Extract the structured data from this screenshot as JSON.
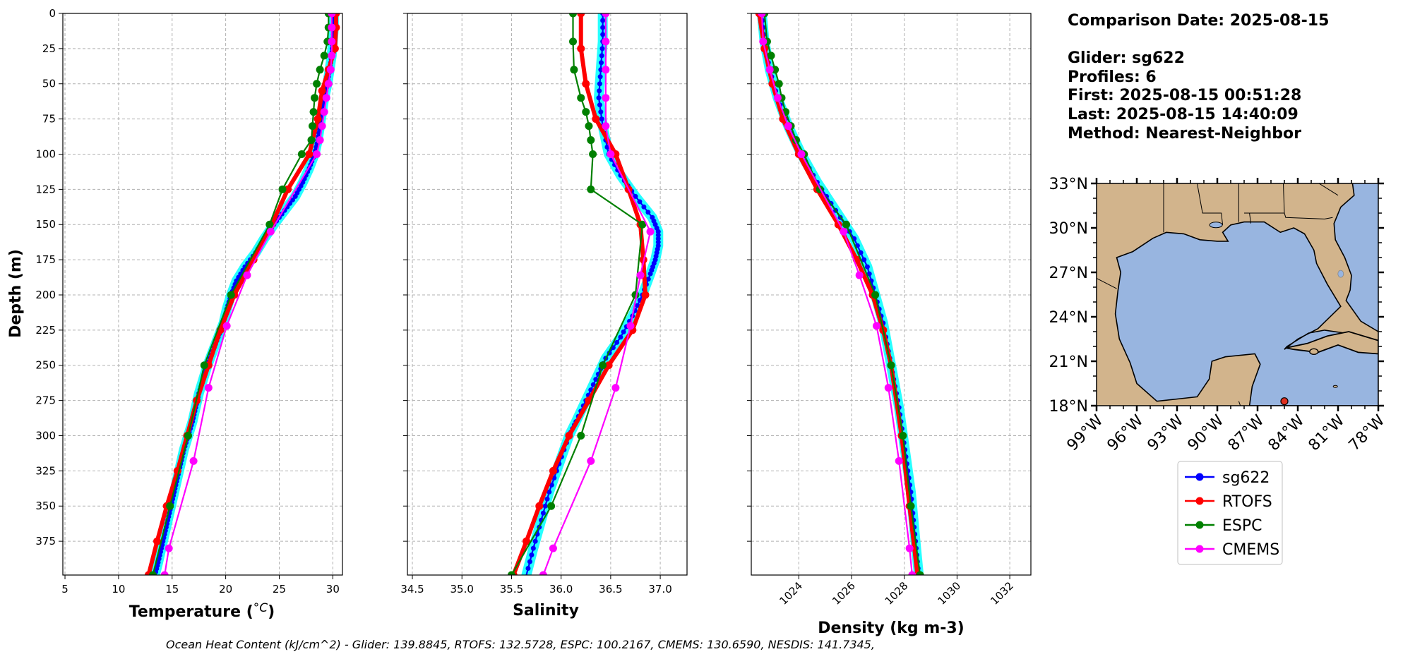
{
  "chart_data": [
    {
      "type": "line",
      "xlabel": "Temperature (",
      "xlabel_unit": "°C",
      "ylabel": "Depth (m)",
      "xlim": [
        4.8,
        30.9
      ],
      "ylim": [
        399,
        0
      ],
      "xticks": [
        "5",
        "10",
        "15",
        "20",
        "25",
        "30"
      ],
      "yticks": [
        "0",
        "25",
        "50",
        "75",
        "100",
        "125",
        "150",
        "175",
        "200",
        "225",
        "250",
        "275",
        "300",
        "325",
        "350",
        "375"
      ],
      "grid": true,
      "series": [
        {
          "name": "sg622",
          "depth": [
            0,
            10,
            20,
            30,
            40,
            50,
            60,
            70,
            80,
            90,
            100,
            110,
            120,
            130,
            140,
            150,
            160,
            170,
            180,
            190,
            200,
            210,
            220,
            230,
            240,
            250,
            260,
            270,
            280,
            290,
            300,
            310,
            320,
            330,
            340,
            350,
            360,
            370,
            380,
            390,
            399
          ],
          "values": [
            30.1,
            30.1,
            30.0,
            29.9,
            29.7,
            29.5,
            29.2,
            29.0,
            28.8,
            28.6,
            28.3,
            27.8,
            27.2,
            26.5,
            25.5,
            24.5,
            23.6,
            22.8,
            21.8,
            21.0,
            20.5,
            20.1,
            19.8,
            19.3,
            18.8,
            18.3,
            17.9,
            17.5,
            17.2,
            16.9,
            16.5,
            16.1,
            15.8,
            15.5,
            15.2,
            14.9,
            14.6,
            14.3,
            14.0,
            13.7,
            13.4
          ]
        },
        {
          "name": "RTOFS",
          "depth": [
            0,
            10,
            25,
            40,
            55,
            75,
            100,
            125,
            150,
            175,
            200,
            225,
            250,
            275,
            300,
            325,
            350,
            375,
            399
          ],
          "values": [
            30.3,
            30.3,
            30.2,
            29.6,
            29.0,
            28.6,
            27.8,
            25.8,
            24.3,
            22.6,
            20.8,
            19.5,
            18.4,
            17.3,
            16.4,
            15.5,
            14.5,
            13.6,
            12.8
          ]
        },
        {
          "name": "ESPC",
          "depth": [
            0,
            10,
            20,
            30,
            40,
            50,
            60,
            70,
            80,
            90,
            100,
            125,
            150,
            200,
            250,
            300,
            350,
            399
          ],
          "values": [
            29.6,
            29.6,
            29.5,
            29.2,
            28.8,
            28.5,
            28.3,
            28.2,
            28.1,
            28.0,
            27.1,
            25.3,
            24.1,
            20.5,
            18.0,
            16.5,
            14.8,
            13.2
          ]
        },
        {
          "name": "CMEMS",
          "depth": [
            0,
            10,
            20,
            30,
            40,
            50,
            60,
            70,
            80,
            90,
            100,
            155,
            186,
            222,
            266,
            318,
            380,
            399
          ],
          "values": [
            29.9,
            29.9,
            29.9,
            29.9,
            29.8,
            29.6,
            29.4,
            29.2,
            29.0,
            28.8,
            28.5,
            24.2,
            22.0,
            20.1,
            18.4,
            17.0,
            14.7,
            14.3
          ]
        }
      ]
    },
    {
      "type": "line",
      "xlabel": "Salinity",
      "xlim": [
        34.45,
        37.27
      ],
      "ylim": [
        399,
        0
      ],
      "xticks": [
        "34.5",
        "35.0",
        "35.5",
        "36.0",
        "36.5",
        "37.0"
      ],
      "grid": true,
      "series": [
        {
          "name": "sg622",
          "depth": [
            0,
            20,
            40,
            60,
            80,
            100,
            115,
            130,
            145,
            155,
            165,
            175,
            185,
            200,
            215,
            230,
            245,
            260,
            275,
            290,
            300,
            320,
            340,
            360,
            380,
            399
          ],
          "values": [
            36.42,
            36.42,
            36.4,
            36.38,
            36.42,
            36.48,
            36.6,
            36.75,
            36.92,
            36.98,
            36.98,
            36.95,
            36.9,
            36.82,
            36.72,
            36.6,
            36.45,
            36.35,
            36.25,
            36.15,
            36.08,
            35.98,
            35.88,
            35.8,
            35.72,
            35.65
          ]
        },
        {
          "name": "RTOFS",
          "depth": [
            0,
            25,
            50,
            75,
            100,
            125,
            150,
            175,
            200,
            225,
            250,
            275,
            300,
            325,
            350,
            375,
            399
          ],
          "values": [
            36.2,
            36.2,
            36.25,
            36.35,
            36.55,
            36.68,
            36.8,
            36.83,
            36.85,
            36.72,
            36.48,
            36.28,
            36.08,
            35.92,
            35.78,
            35.65,
            35.52
          ]
        },
        {
          "name": "ESPC",
          "depth": [
            0,
            20,
            40,
            60,
            70,
            80,
            90,
            100,
            125,
            150,
            200,
            250,
            300,
            350,
            399
          ],
          "values": [
            36.12,
            36.12,
            36.13,
            36.2,
            36.25,
            36.28,
            36.3,
            36.32,
            36.3,
            36.82,
            36.75,
            36.42,
            36.2,
            35.9,
            35.5
          ]
        },
        {
          "name": "CMEMS",
          "depth": [
            0,
            20,
            40,
            60,
            80,
            100,
            155,
            186,
            222,
            266,
            318,
            380,
            399
          ],
          "values": [
            36.45,
            36.45,
            36.45,
            36.45,
            36.45,
            36.5,
            36.9,
            36.8,
            36.7,
            36.55,
            36.3,
            35.92,
            35.82
          ]
        }
      ]
    },
    {
      "type": "line",
      "xlabel": "Density (kg m-3)",
      "xlim": [
        1022.2,
        1032.8
      ],
      "ylim": [
        399,
        0
      ],
      "xticks": [
        "1024",
        "1026",
        "1028",
        "1030",
        "1032"
      ],
      "grid": true,
      "series": [
        {
          "name": "sg622",
          "depth": [
            0,
            20,
            40,
            60,
            80,
            100,
            120,
            140,
            160,
            180,
            200,
            220,
            240,
            260,
            280,
            300,
            320,
            340,
            360,
            380,
            399
          ],
          "values": [
            1022.6,
            1022.7,
            1022.9,
            1023.2,
            1023.6,
            1024.1,
            1024.7,
            1025.4,
            1026.1,
            1026.6,
            1026.9,
            1027.2,
            1027.4,
            1027.6,
            1027.8,
            1027.95,
            1028.1,
            1028.25,
            1028.35,
            1028.45,
            1028.55
          ]
        },
        {
          "name": "RTOFS",
          "depth": [
            0,
            25,
            50,
            75,
            100,
            125,
            150,
            175,
            200,
            225,
            250,
            300,
            350,
            399
          ],
          "values": [
            1022.5,
            1022.7,
            1023.0,
            1023.4,
            1024.0,
            1024.7,
            1025.5,
            1026.2,
            1026.8,
            1027.2,
            1027.5,
            1027.9,
            1028.2,
            1028.5
          ]
        },
        {
          "name": "ESPC",
          "depth": [
            0,
            20,
            30,
            40,
            50,
            60,
            70,
            80,
            90,
            100,
            125,
            150,
            200,
            250,
            300,
            350,
            399
          ],
          "values": [
            1022.7,
            1022.8,
            1022.95,
            1023.1,
            1023.25,
            1023.35,
            1023.5,
            1023.7,
            1023.9,
            1024.2,
            1024.8,
            1025.8,
            1026.9,
            1027.5,
            1027.95,
            1028.25,
            1028.6
          ]
        },
        {
          "name": "CMEMS",
          "depth": [
            0,
            20,
            40,
            60,
            80,
            100,
            155,
            186,
            222,
            266,
            318,
            380,
            399
          ],
          "values": [
            1022.6,
            1022.65,
            1022.9,
            1023.2,
            1023.6,
            1024.1,
            1025.7,
            1026.3,
            1026.95,
            1027.4,
            1027.8,
            1028.2,
            1028.3
          ]
        }
      ]
    }
  ],
  "info": {
    "date_line": "Comparison Date: 2025-08-15",
    "glider_line": "Glider: sg622",
    "profiles_line": "Profiles: 6",
    "first_line": "First: 2025-08-15 00:51:28",
    "last_line": "Last: 2025-08-15 14:40:09",
    "method_line": "Method: Nearest-Neighbor"
  },
  "map": {
    "lat_labels": [
      "33°N",
      "30°N",
      "27°N",
      "24°N",
      "21°N",
      "18°N"
    ],
    "lon_labels": [
      "99°W",
      "96°W",
      "93°W",
      "90°W",
      "87°W",
      "84°W",
      "81°W",
      "78°W"
    ],
    "land_color": "#d2b48c",
    "water_color": "#98b5e0",
    "marker_color": "#e03020",
    "marker_lon": -85.0,
    "marker_lat": 18.3
  },
  "legend": [
    {
      "label": "sg622",
      "color": "#0000ff"
    },
    {
      "label": "RTOFS",
      "color": "#ff0000"
    },
    {
      "label": "ESPC",
      "color": "#008000"
    },
    {
      "label": "CMEMS",
      "color": "#ff00ff"
    }
  ],
  "series_colors": {
    "sg622": "#0000ff",
    "RTOFS": "#ff0000",
    "ESPC": "#008000",
    "CMEMS": "#ff00ff",
    "halo": "#00ffff"
  },
  "footer": "Ocean Heat Content (kJ/cm^2) - Glider: 139.8845,  RTOFS: 132.5728,  ESPC: 100.2167,  CMEMS: 130.6590,  NESDIS: 141.7345,"
}
